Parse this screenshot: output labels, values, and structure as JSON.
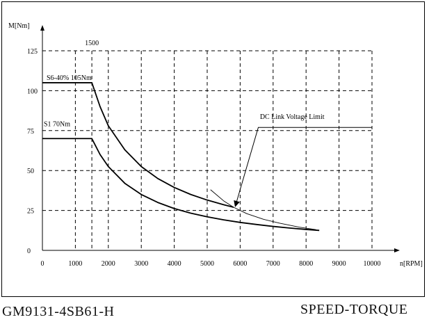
{
  "footer": {
    "model": "GM9131-4SB61-H",
    "title": "SPEED-TORQUE"
  },
  "chart_data": {
    "type": "line",
    "xlabel": "n[RPM]",
    "ylabel": "M[Nm]",
    "xlim": [
      0,
      10000
    ],
    "ylim": [
      0,
      125
    ],
    "x_ticks": [
      0,
      1000,
      1500,
      2000,
      3000,
      4000,
      5000,
      6000,
      7000,
      8000,
      9000,
      10000
    ],
    "y_ticks": [
      0,
      25,
      50,
      75,
      100,
      125
    ],
    "grid_x": [
      1000,
      1500,
      2000,
      3000,
      4000,
      5000,
      6000,
      7000,
      8000,
      9000,
      10000
    ],
    "grid_y": [
      25,
      50,
      75,
      100,
      125
    ],
    "grid": "dashed",
    "annotations": {
      "top_speed": "1500",
      "s6_label": "S6-40% 105Nm",
      "s1_label": "S1 70Nm",
      "dc_limit": "DC Link Voltage Limit"
    },
    "series": [
      {
        "x": [
          0,
          1500,
          1750,
          2000,
          2500,
          3000,
          3500,
          4000,
          4500,
          5000,
          5500,
          5800
        ],
        "y": [
          105,
          105,
          90,
          78,
          63,
          52.5,
          45,
          39.4,
          35,
          31.5,
          28.6,
          27
        ]
      },
      {
        "x": [
          0,
          1500,
          1750,
          2000,
          2500,
          3000,
          3500,
          4000,
          4500,
          5000,
          5500,
          6000,
          6500,
          7000,
          7500,
          8000,
          8400
        ],
        "y": [
          70,
          70,
          60,
          52.5,
          42,
          35,
          30,
          26.2,
          23.3,
          21,
          19.1,
          17.5,
          16.2,
          15,
          14,
          13.1,
          12.5
        ]
      },
      {
        "x": [
          5100,
          5500,
          5800,
          6200,
          6700,
          7200,
          7800,
          8300
        ],
        "y": [
          38,
          31,
          27,
          23,
          19.5,
          17,
          14.5,
          13
        ]
      }
    ]
  }
}
